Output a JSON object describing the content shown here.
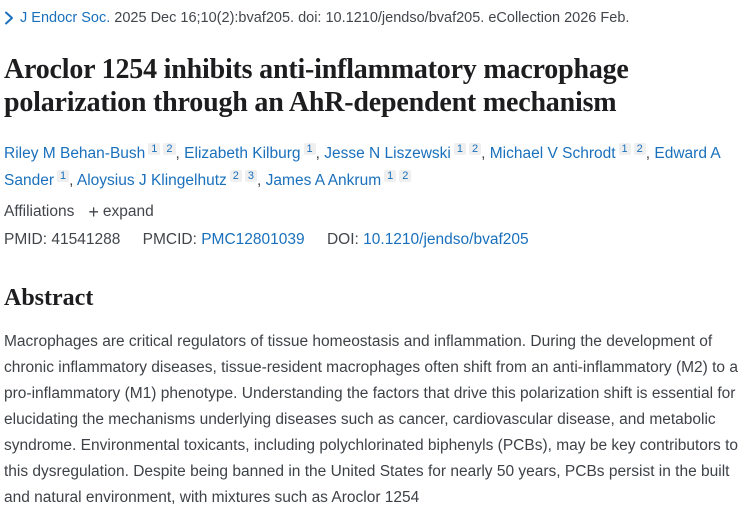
{
  "journal_line": {
    "journal": "J Endocr Soc.",
    "citation": " 2025 Dec 16;10(2):bvaf205. doi: 10.1210/jendso/bvaf205. eCollection 2026 Feb."
  },
  "title": "Aroclor 1254 inhibits anti-inflammatory macrophage polarization through an AhR-dependent mechanism",
  "authors": [
    {
      "name": "Riley M Behan-Bush",
      "affiliations": [
        "1",
        "2"
      ]
    },
    {
      "name": "Elizabeth Kilburg",
      "affiliations": [
        "1"
      ]
    },
    {
      "name": "Jesse N Liszewski",
      "affiliations": [
        "1",
        "2"
      ]
    },
    {
      "name": "Michael V Schrodt",
      "affiliations": [
        "1",
        "2"
      ]
    },
    {
      "name": "Edward A Sander",
      "affiliations": [
        "1"
      ]
    },
    {
      "name": "Aloysius J Klingelhutz",
      "affiliations": [
        "2",
        "3"
      ]
    },
    {
      "name": "James A Ankrum",
      "affiliations": [
        "1",
        "2"
      ]
    }
  ],
  "author_separator": ", ",
  "affiliations_row": {
    "label": "Affiliations",
    "expand_icon": "+",
    "expand_label": "expand"
  },
  "identifiers": {
    "pmid_label": "PMID:",
    "pmid_value": "41541288",
    "pmcid_label": "PMCID:",
    "pmcid_value": "PMC12801039",
    "doi_label": "DOI:",
    "doi_value": "10.1210/jendso/bvaf205"
  },
  "abstract": {
    "heading": "Abstract",
    "text": "Macrophages are critical regulators of tissue homeostasis and inflammation. During the development of chronic inflammatory diseases, tissue-resident macrophages often shift from an anti-inflammatory (M2) to a pro-inflammatory (M1) phenotype. Understanding the factors that drive this polarization shift is essential for elucidating the mechanisms underlying diseases such as cancer, cardiovascular disease, and metabolic syndrome. Environmental toxicants, including polychlorinated biphenyls (PCBs), may be key contributors to this dysregulation. Despite being banned in the United States for nearly 50 years, PCBs persist in the built and natural environment, with mixtures such as Aroclor 1254"
  },
  "colors": {
    "link_blue": "#1a70bc",
    "title_text": "#1d1d1f",
    "body_text": "#3e4247",
    "superscript_bg": "#efefef"
  }
}
